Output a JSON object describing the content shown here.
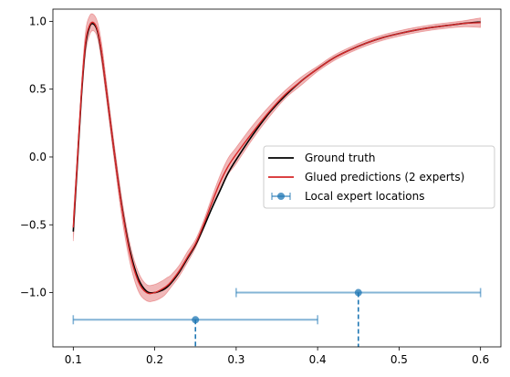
{
  "chart_data": {
    "type": "line",
    "title": "",
    "xlabel": "",
    "ylabel": "",
    "xlim": [
      0.075,
      0.625
    ],
    "ylim": [
      -1.4,
      1.09
    ],
    "x_ticks": [
      {
        "value": 0.1,
        "label": "0.1"
      },
      {
        "value": 0.2,
        "label": "0.2"
      },
      {
        "value": 0.3,
        "label": "0.3"
      },
      {
        "value": 0.4,
        "label": "0.4"
      },
      {
        "value": 0.5,
        "label": "0.5"
      },
      {
        "value": 0.6,
        "label": "0.6"
      }
    ],
    "y_ticks": [
      {
        "value": 1.0,
        "label": "1.0"
      },
      {
        "value": 0.5,
        "label": "0.5"
      },
      {
        "value": 0.0,
        "label": "0.0"
      },
      {
        "value": -0.5,
        "label": "−0.5"
      },
      {
        "value": -1.0,
        "label": "−1.0"
      }
    ],
    "grid": false,
    "legend": {
      "placement": "center-right",
      "entries": [
        {
          "label": "Ground truth",
          "kind": "line",
          "color": "#000000"
        },
        {
          "label": "Glued predictions (2 experts)",
          "kind": "line",
          "color": "#d62728"
        },
        {
          "label": "Local expert locations",
          "kind": "errorbar",
          "color": "#1f77b4"
        }
      ]
    },
    "series": [
      {
        "name": "Ground truth",
        "color": "#000000",
        "x": [
          0.1,
          0.105,
          0.11,
          0.115,
          0.12,
          0.125,
          0.13,
          0.135,
          0.14,
          0.15,
          0.16,
          0.17,
          0.18,
          0.19,
          0.2,
          0.21,
          0.215,
          0.22,
          0.23,
          0.24,
          0.25,
          0.26,
          0.27,
          0.28,
          0.29,
          0.3,
          0.32,
          0.34,
          0.36,
          0.38,
          0.4,
          0.42,
          0.44,
          0.46,
          0.48,
          0.5,
          0.52,
          0.54,
          0.56,
          0.58,
          0.6
        ],
        "y": [
          -0.55,
          -0.05,
          0.45,
          0.82,
          0.96,
          0.98,
          0.92,
          0.75,
          0.52,
          0.05,
          -0.38,
          -0.7,
          -0.9,
          -0.99,
          -1.0,
          -0.98,
          -0.96,
          -0.93,
          -0.85,
          -0.75,
          -0.65,
          -0.52,
          -0.38,
          -0.25,
          -0.12,
          -0.02,
          0.16,
          0.32,
          0.45,
          0.56,
          0.65,
          0.73,
          0.79,
          0.84,
          0.88,
          0.91,
          0.935,
          0.955,
          0.97,
          0.985,
          0.995
        ]
      },
      {
        "name": "Glued predictions (2 experts)",
        "color": "#d62728",
        "band_color": "#e8888a",
        "x": [
          0.1,
          0.105,
          0.11,
          0.115,
          0.12,
          0.125,
          0.13,
          0.135,
          0.14,
          0.15,
          0.16,
          0.17,
          0.18,
          0.19,
          0.2,
          0.21,
          0.215,
          0.22,
          0.23,
          0.24,
          0.25,
          0.26,
          0.27,
          0.28,
          0.29,
          0.3,
          0.32,
          0.34,
          0.36,
          0.38,
          0.4,
          0.42,
          0.44,
          0.46,
          0.48,
          0.5,
          0.52,
          0.54,
          0.56,
          0.58,
          0.6
        ],
        "y": [
          -0.52,
          -0.03,
          0.47,
          0.84,
          0.97,
          0.99,
          0.93,
          0.76,
          0.52,
          0.05,
          -0.39,
          -0.72,
          -0.92,
          -1.0,
          -1.0,
          -0.97,
          -0.95,
          -0.92,
          -0.84,
          -0.74,
          -0.64,
          -0.5,
          -0.34,
          -0.19,
          -0.07,
          0.02,
          0.18,
          0.33,
          0.46,
          0.56,
          0.65,
          0.73,
          0.79,
          0.84,
          0.88,
          0.91,
          0.935,
          0.955,
          0.97,
          0.985,
          0.99
        ],
        "lower": [
          -0.62,
          -0.11,
          0.4,
          0.76,
          0.9,
          0.93,
          0.87,
          0.69,
          0.46,
          -0.01,
          -0.46,
          -0.79,
          -0.99,
          -1.06,
          -1.06,
          -1.03,
          -1.0,
          -0.96,
          -0.88,
          -0.78,
          -0.67,
          -0.53,
          -0.38,
          -0.25,
          -0.13,
          -0.05,
          0.13,
          0.29,
          0.43,
          0.53,
          0.63,
          0.71,
          0.77,
          0.82,
          0.86,
          0.89,
          0.915,
          0.935,
          0.95,
          0.96,
          0.955
        ],
        "upper": [
          -0.44,
          0.05,
          0.54,
          0.92,
          1.04,
          1.05,
          0.99,
          0.83,
          0.59,
          0.11,
          -0.32,
          -0.65,
          -0.85,
          -0.94,
          -0.94,
          -0.91,
          -0.89,
          -0.87,
          -0.8,
          -0.7,
          -0.61,
          -0.47,
          -0.3,
          -0.14,
          -0.01,
          0.07,
          0.23,
          0.37,
          0.49,
          0.59,
          0.67,
          0.75,
          0.81,
          0.86,
          0.9,
          0.93,
          0.955,
          0.975,
          0.99,
          1.005,
          1.025
        ]
      }
    ],
    "expert_locations": {
      "name": "Local expert locations",
      "color": "#1f77b4",
      "points": [
        {
          "x": 0.25,
          "y": -1.2,
          "xmin": 0.1,
          "xmax": 0.4
        },
        {
          "x": 0.45,
          "y": -1.0,
          "xmin": 0.3,
          "xmax": 0.6
        }
      ]
    }
  }
}
